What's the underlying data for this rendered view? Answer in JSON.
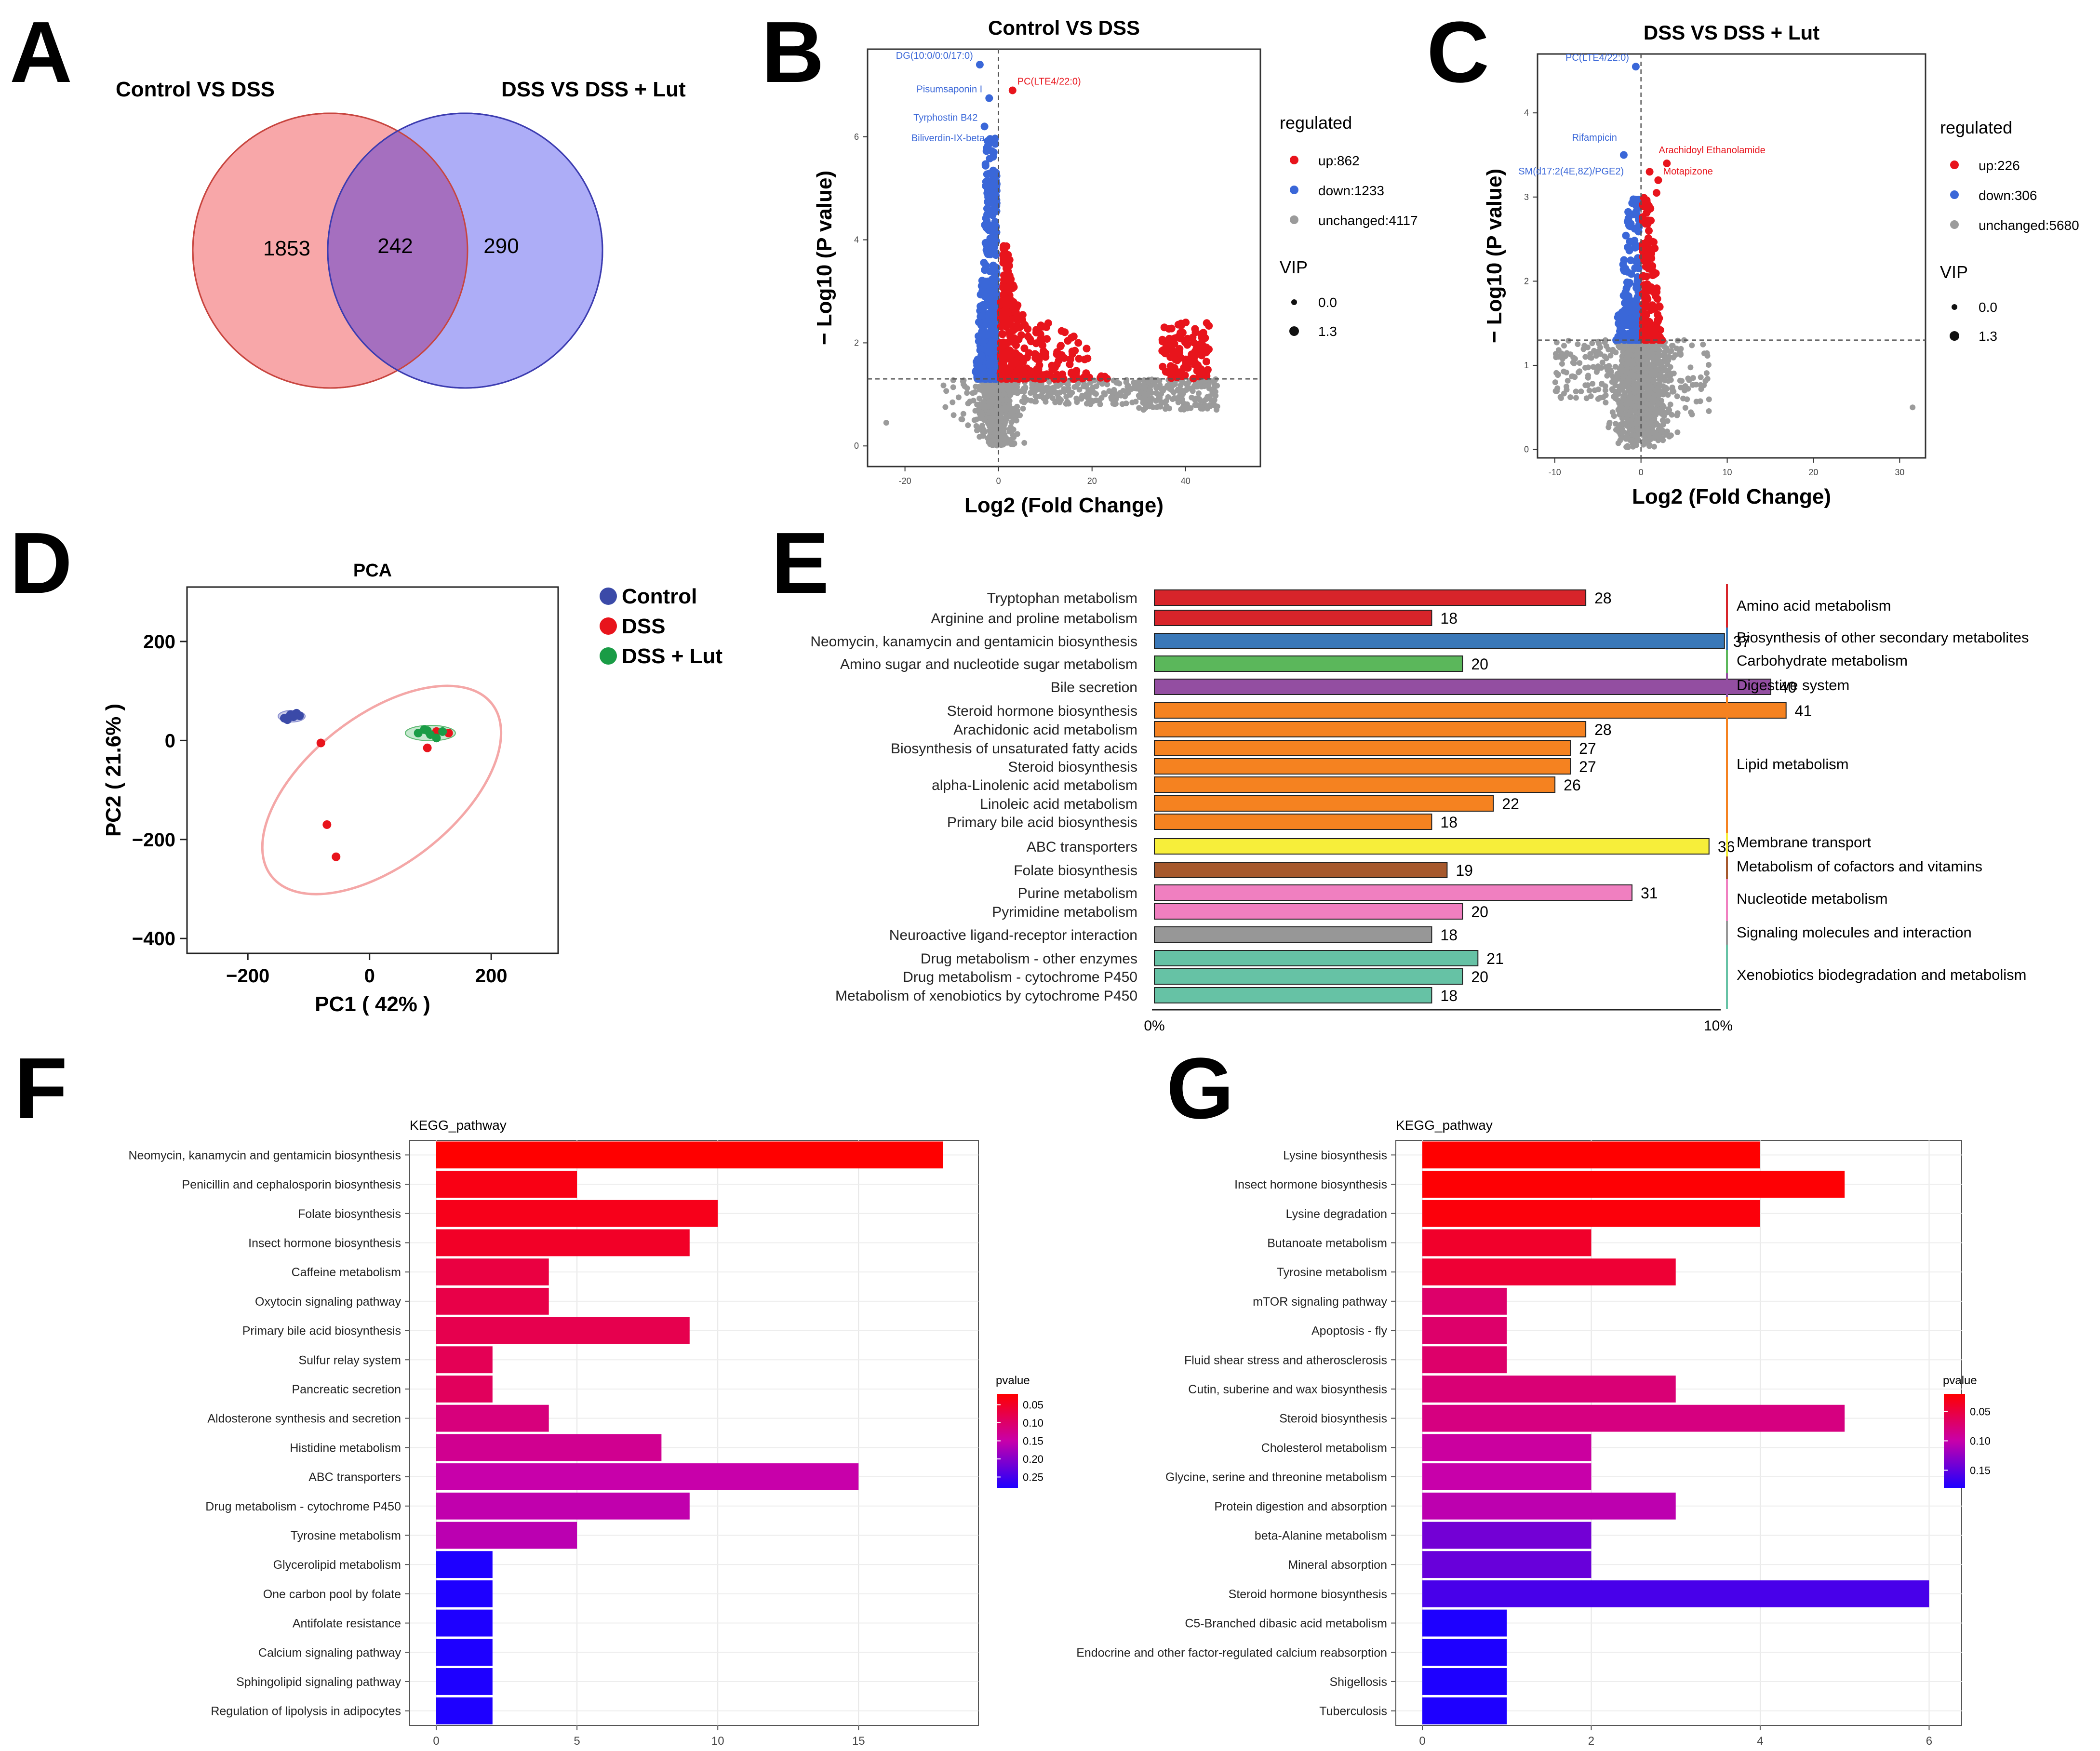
{
  "panels": {
    "A": {
      "letter": "A",
      "label_left": "Control  VS  DSS",
      "label_right": "DSS  VS  DSS + Lut",
      "left_only": "1853",
      "overlap": "242",
      "right_only": "290",
      "color_left": "#f8a7a9",
      "color_right": "#adadf7",
      "color_overlap": "#a56fbf"
    },
    "B": {
      "letter": "B"
    },
    "C": {
      "letter": "C"
    },
    "D": {
      "letter": "D"
    },
    "E": {
      "letter": "E"
    },
    "F": {
      "letter": "F"
    },
    "G": {
      "letter": "G"
    }
  },
  "colors": {
    "up": "#e8141c",
    "down": "#3a67d8",
    "unchanged": "#9b9b9b"
  },
  "chart_data": [
    {
      "id": "B",
      "type": "scatter",
      "title": "Control  VS  DSS",
      "xlabel": "Log2 (Fold Change)",
      "ylabel": "− Log10 (P value)",
      "xlim": [
        -28,
        56
      ],
      "ylim": [
        -0.4,
        7.7
      ],
      "xticks": [
        -20,
        0,
        20,
        40
      ],
      "yticks": [
        0,
        2,
        4,
        6
      ],
      "hline": 1.3,
      "vline": 0,
      "legend_title": "regulated",
      "legend": [
        "up:862",
        "down:1233",
        "unchanged:4117"
      ],
      "vip_title": "VIP",
      "vip": [
        "0.0",
        "1.3"
      ],
      "labels": [
        {
          "text": "DG(10:0/0:0/17:0)",
          "x": -4,
          "y": 7.4,
          "color": "down"
        },
        {
          "text": "PC(LTE4/22:0)",
          "x": 3,
          "y": 6.9,
          "color": "up"
        },
        {
          "text": "Pisumsaponin I",
          "x": -2,
          "y": 6.75,
          "color": "down"
        },
        {
          "text": "Tyrphostin B42",
          "x": -3,
          "y": 6.2,
          "color": "down"
        },
        {
          "text": "Biliverdin-IX-beta",
          "x": -1.5,
          "y": 5.8,
          "color": "down"
        }
      ],
      "groups": [
        {
          "kind": "down",
          "n": 420,
          "x": [
            -5,
            -0.4
          ],
          "y": [
            1.3,
            5.3
          ],
          "dist": "pow"
        },
        {
          "kind": "down",
          "n": 30,
          "x": [
            -3,
            -0.5
          ],
          "y": [
            5.0,
            6.0
          ],
          "dist": "uni"
        },
        {
          "kind": "up",
          "n": 190,
          "x": [
            0.4,
            10
          ],
          "y": [
            1.3,
            2.8
          ],
          "dist": "pow"
        },
        {
          "kind": "up",
          "n": 90,
          "x": [
            1,
            4
          ],
          "y": [
            2.6,
            3.9
          ],
          "dist": "pow"
        },
        {
          "kind": "up",
          "n": 90,
          "x": [
            8,
            24
          ],
          "y": [
            1.3,
            2.4
          ],
          "dist": "pow"
        },
        {
          "kind": "up",
          "n": 110,
          "x": [
            35,
            45
          ],
          "y": [
            1.3,
            2.4
          ],
          "dist": "uni"
        },
        {
          "kind": "unchanged",
          "n": 420,
          "x": [
            -6,
            6
          ],
          "y": [
            0,
            1.3
          ],
          "dist": "norm"
        },
        {
          "kind": "unchanged",
          "n": 190,
          "x": [
            5,
            32
          ],
          "y": [
            0.8,
            1.3
          ],
          "dist": "uni"
        },
        {
          "kind": "unchanged",
          "n": 170,
          "x": [
            30,
            47
          ],
          "y": [
            0.7,
            1.3
          ],
          "dist": "uni"
        },
        {
          "kind": "unchanged",
          "n": 40,
          "x": [
            -12,
            -3
          ],
          "y": [
            0.4,
            1.3
          ],
          "dist": "uni"
        }
      ],
      "extra_points": [
        {
          "kind": "down",
          "x": -4,
          "y": 7.4
        },
        {
          "kind": "up",
          "x": 3,
          "y": 6.9
        },
        {
          "kind": "down",
          "x": -2,
          "y": 6.75
        },
        {
          "kind": "down",
          "x": -3,
          "y": 6.2
        },
        {
          "kind": "unchanged",
          "x": -24,
          "y": 0.45
        }
      ]
    },
    {
      "id": "C",
      "type": "scatter",
      "title": "DSS  VS  DSS + Lut",
      "xlabel": "Log2 (Fold Change)",
      "ylabel": "− Log10 (P value)",
      "xlim": [
        -12,
        33
      ],
      "ylim": [
        -0.1,
        4.7
      ],
      "xticks": [
        -10,
        0,
        10,
        20,
        30
      ],
      "yticks": [
        0,
        1,
        2,
        3,
        4
      ],
      "hline": 1.3,
      "vline": 0,
      "legend_title": "regulated",
      "legend": [
        "up:226",
        "down:306",
        "unchanged:5680"
      ],
      "vip_title": "VIP",
      "vip": [
        "0.0",
        "1.3"
      ],
      "labels": [
        {
          "text": "PC(LTE4/22:0)",
          "x": -0.6,
          "y": 4.55,
          "color": "down"
        },
        {
          "text": "Rifampicin",
          "x": -2,
          "y": 3.6,
          "color": "down"
        },
        {
          "text": "Arachidoyl Ethanolamide",
          "x": 1.5,
          "y": 3.45,
          "color": "up"
        },
        {
          "text": "SM(d17:2(4E,8Z)/PGE2)",
          "x": -1.2,
          "y": 3.2,
          "color": "down"
        },
        {
          "text": "Motapizone",
          "x": 2,
          "y": 3.2,
          "color": "up"
        }
      ],
      "groups": [
        {
          "kind": "down",
          "n": 180,
          "x": [
            -3,
            -0.2
          ],
          "y": [
            1.3,
            3.0
          ],
          "dist": "pow"
        },
        {
          "kind": "up",
          "n": 150,
          "x": [
            0.2,
            2.5
          ],
          "y": [
            1.3,
            3.0
          ],
          "dist": "pow"
        },
        {
          "kind": "unchanged",
          "n": 950,
          "x": [
            -5,
            5
          ],
          "y": [
            0,
            1.3
          ],
          "dist": "norm"
        },
        {
          "kind": "unchanged",
          "n": 90,
          "x": [
            -10,
            -4
          ],
          "y": [
            0.6,
            1.3
          ],
          "dist": "uni"
        },
        {
          "kind": "unchanged",
          "n": 50,
          "x": [
            3,
            8
          ],
          "y": [
            0.4,
            1.3
          ],
          "dist": "uni"
        }
      ],
      "extra_points": [
        {
          "kind": "down",
          "x": -0.6,
          "y": 4.55
        },
        {
          "kind": "down",
          "x": -2,
          "y": 3.5
        },
        {
          "kind": "up",
          "x": 1,
          "y": 3.3
        },
        {
          "kind": "up",
          "x": 2,
          "y": 3.2
        },
        {
          "kind": "up",
          "x": 3,
          "y": 3.4
        },
        {
          "kind": "up",
          "x": 1.8,
          "y": 3.05
        },
        {
          "kind": "unchanged",
          "x": 31.5,
          "y": 0.5
        },
        {
          "kind": "unchanged",
          "x": 5,
          "y": 1.3
        }
      ]
    },
    {
      "id": "D",
      "type": "scatter",
      "title": "PCA",
      "xlabel": "PC1 ( 42% )",
      "ylabel": "PC2 ( 21.6% )",
      "xlim": [
        -300,
        310
      ],
      "ylim": [
        -430,
        310
      ],
      "xticks": [
        -200,
        0,
        200
      ],
      "yticks": [
        -400,
        -200,
        0,
        200
      ],
      "legend": [
        {
          "name": "Control",
          "color": "#3b4aa8"
        },
        {
          "name": "DSS",
          "color": "#e8141c"
        },
        {
          "name": "DSS + Lut",
          "color": "#1a9c46"
        }
      ],
      "ellipse": {
        "cx": 20,
        "cy": -100,
        "rx": 230,
        "ry": 150,
        "angle_deg": 38,
        "color": "#f4a7a7"
      },
      "points": [
        {
          "group": "Control",
          "x": -140,
          "y": 45
        },
        {
          "group": "Control",
          "x": -130,
          "y": 52
        },
        {
          "group": "Control",
          "x": -125,
          "y": 48
        },
        {
          "group": "Control",
          "x": -120,
          "y": 55
        },
        {
          "group": "Control",
          "x": -135,
          "y": 42
        },
        {
          "group": "Control",
          "x": -115,
          "y": 50
        },
        {
          "group": "DSS",
          "x": -80,
          "y": -5
        },
        {
          "group": "DSS",
          "x": -70,
          "y": -170
        },
        {
          "group": "DSS",
          "x": -55,
          "y": -235
        },
        {
          "group": "DSS",
          "x": 95,
          "y": -15
        },
        {
          "group": "DSS",
          "x": 130,
          "y": 15
        },
        {
          "group": "DSS",
          "x": 110,
          "y": 18
        },
        {
          "group": "DSS + Lut",
          "x": 80,
          "y": 15
        },
        {
          "group": "DSS + Lut",
          "x": 90,
          "y": 22
        },
        {
          "group": "DSS + Lut",
          "x": 100,
          "y": 12
        },
        {
          "group": "DSS + Lut",
          "x": 110,
          "y": 5
        },
        {
          "group": "DSS + Lut",
          "x": 120,
          "y": 18
        },
        {
          "group": "DSS + Lut",
          "x": 95,
          "y": 20
        }
      ]
    },
    {
      "id": "E",
      "type": "bar",
      "orientation": "horizontal",
      "xlim": [
        0,
        10
      ],
      "xtick_labels": [
        "0%",
        "10%"
      ],
      "bars": [
        {
          "label": "Tryptophan metabolism",
          "value": 28,
          "class": 0
        },
        {
          "label": "Arginine and proline metabolism",
          "value": 18,
          "class": 0
        },
        {
          "label": "Neomycin, kanamycin and gentamicin biosynthesis",
          "value": 37,
          "class": 1
        },
        {
          "label": "Amino sugar and nucleotide sugar metabolism",
          "value": 20,
          "class": 2
        },
        {
          "label": "Bile secretion",
          "value": 40,
          "class": 3
        },
        {
          "label": "Steroid hormone biosynthesis",
          "value": 41,
          "class": 4
        },
        {
          "label": "Arachidonic acid metabolism",
          "value": 28,
          "class": 4
        },
        {
          "label": "Biosynthesis of unsaturated fatty acids",
          "value": 27,
          "class": 4
        },
        {
          "label": "Steroid biosynthesis",
          "value": 27,
          "class": 4
        },
        {
          "label": "alpha-Linolenic acid metabolism",
          "value": 26,
          "class": 4
        },
        {
          "label": "Linoleic acid metabolism",
          "value": 22,
          "class": 4
        },
        {
          "label": "Primary bile acid biosynthesis",
          "value": 18,
          "class": 4
        },
        {
          "label": "ABC transporters",
          "value": 36,
          "class": 5
        },
        {
          "label": "Folate biosynthesis",
          "value": 19,
          "class": 6
        },
        {
          "label": "Purine metabolism",
          "value": 31,
          "class": 7
        },
        {
          "label": "Pyrimidine metabolism",
          "value": 20,
          "class": 7
        },
        {
          "label": "Neuroactive ligand-receptor interaction",
          "value": 18,
          "class": 8
        },
        {
          "label": "Drug metabolism - other enzymes",
          "value": 21,
          "class": 9
        },
        {
          "label": "Drug metabolism - cytochrome P450",
          "value": 20,
          "class": 9
        },
        {
          "label": "Metabolism of xenobiotics by cytochrome P450",
          "value": 18,
          "class": 9
        }
      ],
      "classes": [
        {
          "name": "Amino acid metabolism",
          "color": "#d7242a"
        },
        {
          "name": "Biosynthesis of other secondary metabolites",
          "color": "#3a78b8"
        },
        {
          "name": "Carbohydrate metabolism",
          "color": "#5bb75b"
        },
        {
          "name": "Digestive system",
          "color": "#934ea1"
        },
        {
          "name": "Lipid metabolism",
          "color": "#f58220"
        },
        {
          "name": "Membrane transport",
          "color": "#f7ee3a"
        },
        {
          "name": "Metabolism of cofactors and vitamins",
          "color": "#a6582c"
        },
        {
          "name": "Nucleotide metabolism",
          "color": "#f07fc0"
        },
        {
          "name": "Signaling molecules and interaction",
          "color": "#979797"
        },
        {
          "name": "Xenobiotics biodegradation and metabolism",
          "color": "#66c2a5"
        }
      ]
    },
    {
      "id": "F",
      "type": "bar",
      "orientation": "horizontal",
      "title": "KEGG_pathway",
      "xlim": [
        0,
        19
      ],
      "xticks": [
        0,
        5,
        10,
        15
      ],
      "legend_title": "pvalue",
      "p_range": [
        0.02,
        0.28
      ],
      "p_ticks": [
        0.05,
        0.1,
        0.15,
        0.2,
        0.25
      ],
      "bars": [
        {
          "label": "Neomycin, kanamycin and gentamicin biosynthesis",
          "value": 18,
          "p": 0.02
        },
        {
          "label": "Penicillin and cephalosporin biosynthesis",
          "value": 5,
          "p": 0.035
        },
        {
          "label": "Folate biosynthesis",
          "value": 10,
          "p": 0.04
        },
        {
          "label": "Insect hormone biosynthesis",
          "value": 9,
          "p": 0.05
        },
        {
          "label": "Caffeine metabolism",
          "value": 4,
          "p": 0.07
        },
        {
          "label": "Oxytocin signaling pathway",
          "value": 4,
          "p": 0.075
        },
        {
          "label": "Primary bile acid biosynthesis",
          "value": 9,
          "p": 0.08
        },
        {
          "label": "Sulfur relay system",
          "value": 2,
          "p": 0.085
        },
        {
          "label": "Pancreatic secretion",
          "value": 2,
          "p": 0.09
        },
        {
          "label": "Aldosterone synthesis and secretion",
          "value": 4,
          "p": 0.115
        },
        {
          "label": "Histidine metabolism",
          "value": 8,
          "p": 0.13
        },
        {
          "label": "ABC transporters",
          "value": 15,
          "p": 0.15
        },
        {
          "label": "Drug metabolism - cytochrome P450",
          "value": 9,
          "p": 0.155
        },
        {
          "label": "Tyrosine metabolism",
          "value": 5,
          "p": 0.16
        },
        {
          "label": "Glycerolipid metabolism",
          "value": 2,
          "p": 0.28
        },
        {
          "label": "One carbon pool by folate",
          "value": 2,
          "p": 0.28
        },
        {
          "label": "Antifolate resistance",
          "value": 2,
          "p": 0.28
        },
        {
          "label": "Calcium signaling pathway",
          "value": 2,
          "p": 0.28
        },
        {
          "label": "Sphingolipid signaling pathway",
          "value": 2,
          "p": 0.28
        },
        {
          "label": "Regulation of lipolysis in adipocytes",
          "value": 2,
          "p": 0.28
        }
      ]
    },
    {
      "id": "G",
      "type": "bar",
      "orientation": "horizontal",
      "title": "KEGG_pathway",
      "xlim": [
        0,
        6.3
      ],
      "xticks": [
        0,
        2,
        4,
        6
      ],
      "legend_title": "pvalue",
      "p_range": [
        0.02,
        0.18
      ],
      "p_ticks": [
        0.05,
        0.1,
        0.15
      ],
      "bars": [
        {
          "label": "Lysine biosynthesis",
          "value": 4,
          "p": 0.02
        },
        {
          "label": "Insect hormone biosynthesis",
          "value": 5,
          "p": 0.022
        },
        {
          "label": "Lysine degradation",
          "value": 4,
          "p": 0.025
        },
        {
          "label": "Butanoate metabolism",
          "value": 2,
          "p": 0.04
        },
        {
          "label": "Tyrosine metabolism",
          "value": 3,
          "p": 0.045
        },
        {
          "label": "mTOR signaling pathway",
          "value": 1,
          "p": 0.07
        },
        {
          "label": "Apoptosis - fly",
          "value": 1,
          "p": 0.07
        },
        {
          "label": "Fluid shear stress and atherosclerosis",
          "value": 1,
          "p": 0.07
        },
        {
          "label": "Cutin, suberine and wax biosynthesis",
          "value": 3,
          "p": 0.075
        },
        {
          "label": "Steroid biosynthesis",
          "value": 5,
          "p": 0.08
        },
        {
          "label": "Cholesterol metabolism",
          "value": 2,
          "p": 0.095
        },
        {
          "label": "Glycine, serine and threonine metabolism",
          "value": 2,
          "p": 0.1
        },
        {
          "label": "Protein digestion and absorption",
          "value": 3,
          "p": 0.105
        },
        {
          "label": "beta-Alanine metabolism",
          "value": 2,
          "p": 0.14
        },
        {
          "label": "Mineral absorption",
          "value": 2,
          "p": 0.145
        },
        {
          "label": "Steroid hormone biosynthesis",
          "value": 6,
          "p": 0.16
        },
        {
          "label": "C5-Branched dibasic acid metabolism",
          "value": 1,
          "p": 0.18
        },
        {
          "label": "Endocrine and other factor-regulated calcium reabsorption",
          "value": 1,
          "p": 0.18
        },
        {
          "label": "Shigellosis",
          "value": 1,
          "p": 0.18
        },
        {
          "label": "Tuberculosis",
          "value": 1,
          "p": 0.18
        }
      ]
    }
  ]
}
